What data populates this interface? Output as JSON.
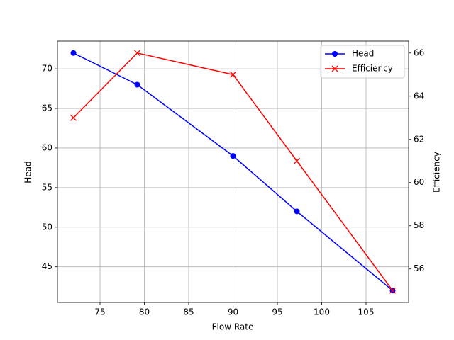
{
  "chart_data": {
    "type": "line",
    "x": [
      72,
      79.2,
      90,
      97.2,
      108
    ],
    "xlabel": "Flow Rate",
    "ylabel": "Head",
    "y2label": "Efficiency",
    "xlim": [
      70.2,
      109.8
    ],
    "xticks": [
      75,
      80,
      85,
      90,
      95,
      100,
      105
    ],
    "ylim": [
      40.5,
      73.5
    ],
    "yticks": [
      45,
      50,
      55,
      60,
      65,
      70
    ],
    "y2lim": [
      54.45,
      66.55
    ],
    "y2ticks": [
      56,
      58,
      60,
      62,
      64,
      66
    ],
    "grid": true,
    "legend": "upper-right",
    "series": [
      {
        "name": "Head",
        "color": "#0000ff",
        "marker": "circle",
        "values": [
          72,
          68,
          59,
          52,
          42
        ]
      },
      {
        "name": "Efficiency",
        "color": "#ff0000",
        "marker": "x",
        "axis": "y2",
        "values": [
          63,
          66,
          65,
          61,
          55
        ]
      }
    ]
  }
}
